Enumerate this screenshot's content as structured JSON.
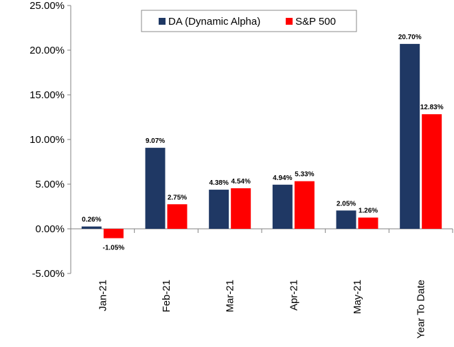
{
  "chart_data": {
    "type": "bar",
    "categories": [
      "Jan-21",
      "Feb-21",
      "Mar-21",
      "Apr-21",
      "May-21",
      "Year To Date"
    ],
    "series": [
      {
        "name": "DA (Dynamic Alpha)",
        "color": "#1f3864",
        "values": [
          0.26,
          9.07,
          4.38,
          4.94,
          2.05,
          20.7
        ],
        "labels": [
          "0.26%",
          "9.07%",
          "4.38%",
          "4.94%",
          "2.05%",
          "20.70%"
        ]
      },
      {
        "name": "S&P 500",
        "color": "#ff0000",
        "values": [
          -1.05,
          2.75,
          4.54,
          5.33,
          1.26,
          12.83
        ],
        "labels": [
          "-1.05%",
          "2.75%",
          "4.54%",
          "5.33%",
          "1.26%",
          "12.83%"
        ]
      }
    ],
    "y_ticks": [
      25,
      20,
      15,
      10,
      5,
      0,
      -5
    ],
    "y_tick_labels": [
      "25.00%",
      "20.00%",
      "15.00%",
      "10.00%",
      "5.00%",
      "0.00%",
      "-5.00%"
    ],
    "ylim": [
      -5,
      25
    ],
    "grid": false,
    "legend_position": "top"
  }
}
